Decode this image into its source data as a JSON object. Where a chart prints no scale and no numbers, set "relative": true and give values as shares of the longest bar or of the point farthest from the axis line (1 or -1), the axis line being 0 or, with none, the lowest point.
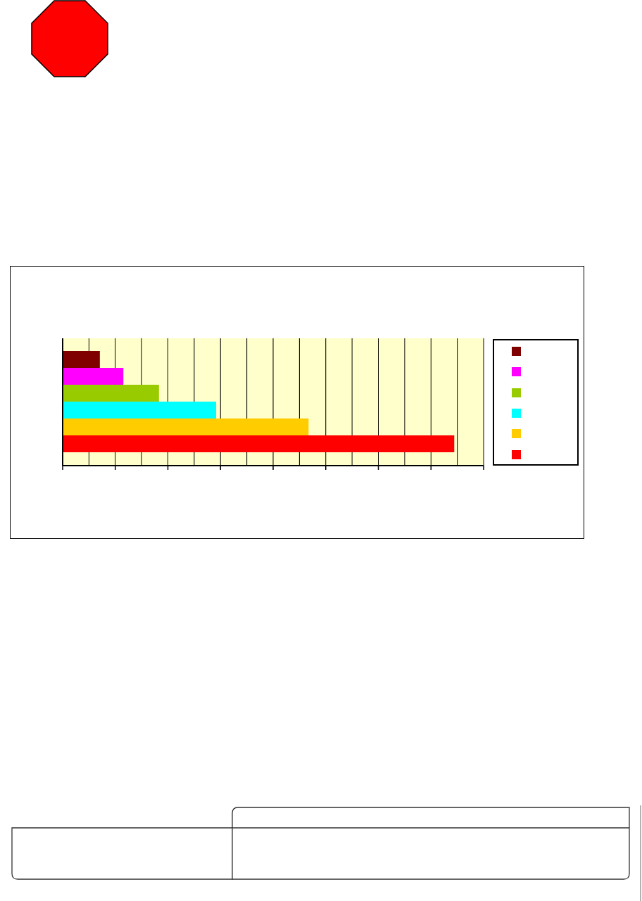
{
  "chart_data": {
    "type": "bar",
    "orientation": "horizontal",
    "relative": true,
    "categories": [
      null
    ],
    "series": [
      {
        "color": "#800000",
        "values": [
          0.095
        ]
      },
      {
        "color": "#ff00ff",
        "values": [
          0.155
        ]
      },
      {
        "color": "#99cc00",
        "values": [
          0.246
        ]
      },
      {
        "color": "#00ffff",
        "values": [
          0.392
        ]
      },
      {
        "color": "#ffcc00",
        "values": [
          0.628
        ]
      },
      {
        "color": "#ff0000",
        "values": [
          1
        ]
      }
    ],
    "grid": "x"
  }
}
